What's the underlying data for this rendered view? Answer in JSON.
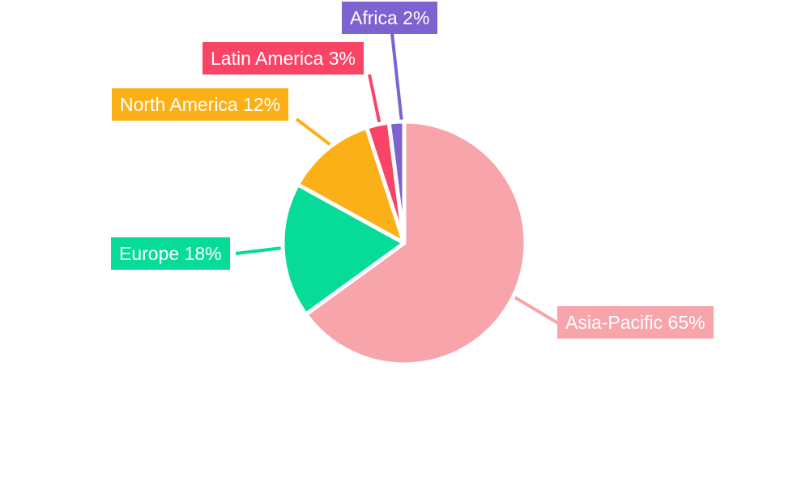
{
  "page": {
    "background": "#FFFFFF"
  },
  "chart_data": {
    "type": "pie",
    "direction": "clockwise",
    "start_angle_deg": 0,
    "unit": "%",
    "total": 100,
    "legend": "none",
    "label_text_color": "#FFFFFF",
    "callout_lines": true,
    "slices": [
      {
        "label": "Asia-Pacific",
        "value": 65,
        "display": "Asia-Pacific 65%",
        "color": "#F7A5AA"
      },
      {
        "label": "Europe",
        "value": 18,
        "display": "Europe 18%",
        "color": "#06DC98"
      },
      {
        "label": "North America",
        "value": 12,
        "display": "North America 12%",
        "color": "#FCB018"
      },
      {
        "label": "Latin America",
        "value": 3,
        "display": "Latin America 3%",
        "color": "#FA4466"
      },
      {
        "label": "Africa",
        "value": 2,
        "display": "Africa 2%",
        "color": "#7C63D0"
      }
    ]
  }
}
